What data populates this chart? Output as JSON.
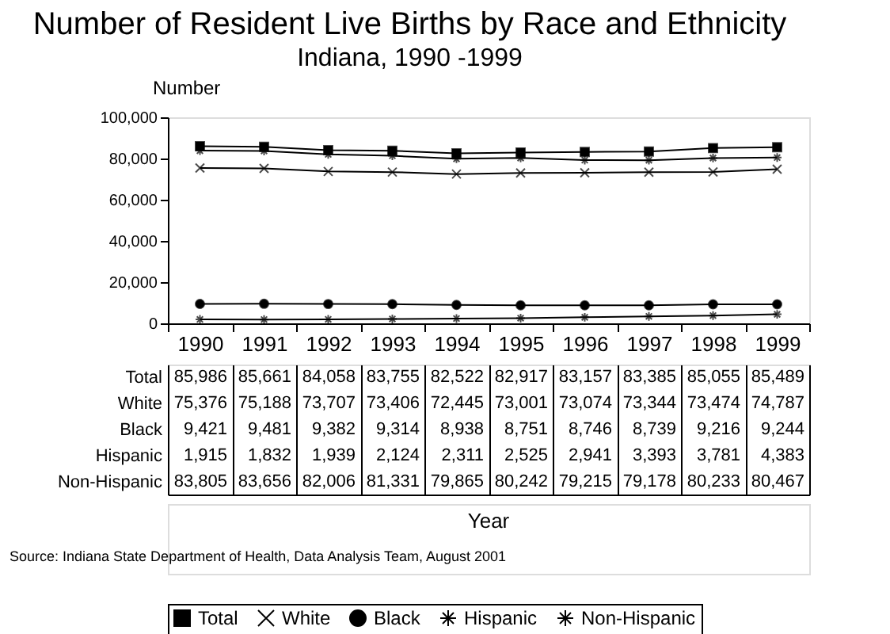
{
  "chart_data": {
    "type": "line",
    "title": "Number of Resident Live Births by Race and Ethnicity",
    "subtitle": "Indiana, 1990 -1999",
    "ylabel": "Number",
    "categories": [
      "1990",
      "1991",
      "1992",
      "1993",
      "1994",
      "1995",
      "1996",
      "1997",
      "1998",
      "1999"
    ],
    "series": [
      {
        "name": "Total",
        "color": "#000000",
        "marker": "square",
        "values": [
          85986,
          85661,
          84058,
          83755,
          82522,
          82917,
          83157,
          83385,
          85055,
          85489
        ],
        "value_labels": [
          "85,986",
          "85,661",
          "84,058",
          "83,755",
          "82,522",
          "82,917",
          "83,157",
          "83,385",
          "85,055",
          "85,489"
        ]
      },
      {
        "name": "White",
        "color": "#000000",
        "marker": "cross",
        "values": [
          75376,
          75188,
          73707,
          73406,
          72445,
          73001,
          73074,
          73344,
          73474,
          74787
        ],
        "value_labels": [
          "75,376",
          "75,188",
          "73,707",
          "73,406",
          "72,445",
          "73,001",
          "73,074",
          "73,344",
          "73,474",
          "74,787"
        ]
      },
      {
        "name": "Black",
        "color": "#000000",
        "marker": "circle",
        "values": [
          9421,
          9481,
          9382,
          9314,
          8938,
          8751,
          8746,
          8739,
          9216,
          9244
        ],
        "value_labels": [
          "9,421",
          "9,481",
          "9,382",
          "9,314",
          "8,938",
          "8,751",
          "8,746",
          "8,739",
          "9,216",
          "9,244"
        ]
      },
      {
        "name": "Hispanic",
        "color": "#000000",
        "marker": "cross",
        "values": [
          1915,
          1832,
          1939,
          2124,
          2311,
          2525,
          2941,
          3393,
          3781,
          4383
        ],
        "value_labels": [
          "1,915",
          "1,832",
          "1,939",
          "2,124",
          "2,311",
          "2,525",
          "2,941",
          "3,393",
          "3,781",
          "4,383"
        ]
      },
      {
        "name": "Non-Hispanic",
        "color": "#000000",
        "marker": "cross",
        "values": [
          83805,
          83656,
          82006,
          81331,
          79865,
          80242,
          79215,
          79178,
          80233,
          80467
        ],
        "value_labels": [
          "83,805",
          "83,656",
          "82,006",
          "81,331",
          "79,865",
          "80,242",
          "79,215",
          "79,178",
          "80,233",
          "80,467"
        ]
      }
    ],
    "ylim": [
      0,
      100000
    ],
    "yticks": [
      0,
      {
        "value": 20000,
        "label": "20,000"
      },
      {
        "value": 40000,
        "label": "40,000"
      },
      {
        "value": 60000,
        "label": "60,000"
      },
      {
        "value": 80000,
        "label": "80,000"
      },
      {
        "value": 100000,
        "label": "100,000"
      }
    ],
    "grid": false,
    "legend": "bottom",
    "line_style": "solid",
    "annotations": [
      "Year",
      "Source:  Indiana State Department of Health, Data Analysis Team, August 2001"
    ]
  }
}
